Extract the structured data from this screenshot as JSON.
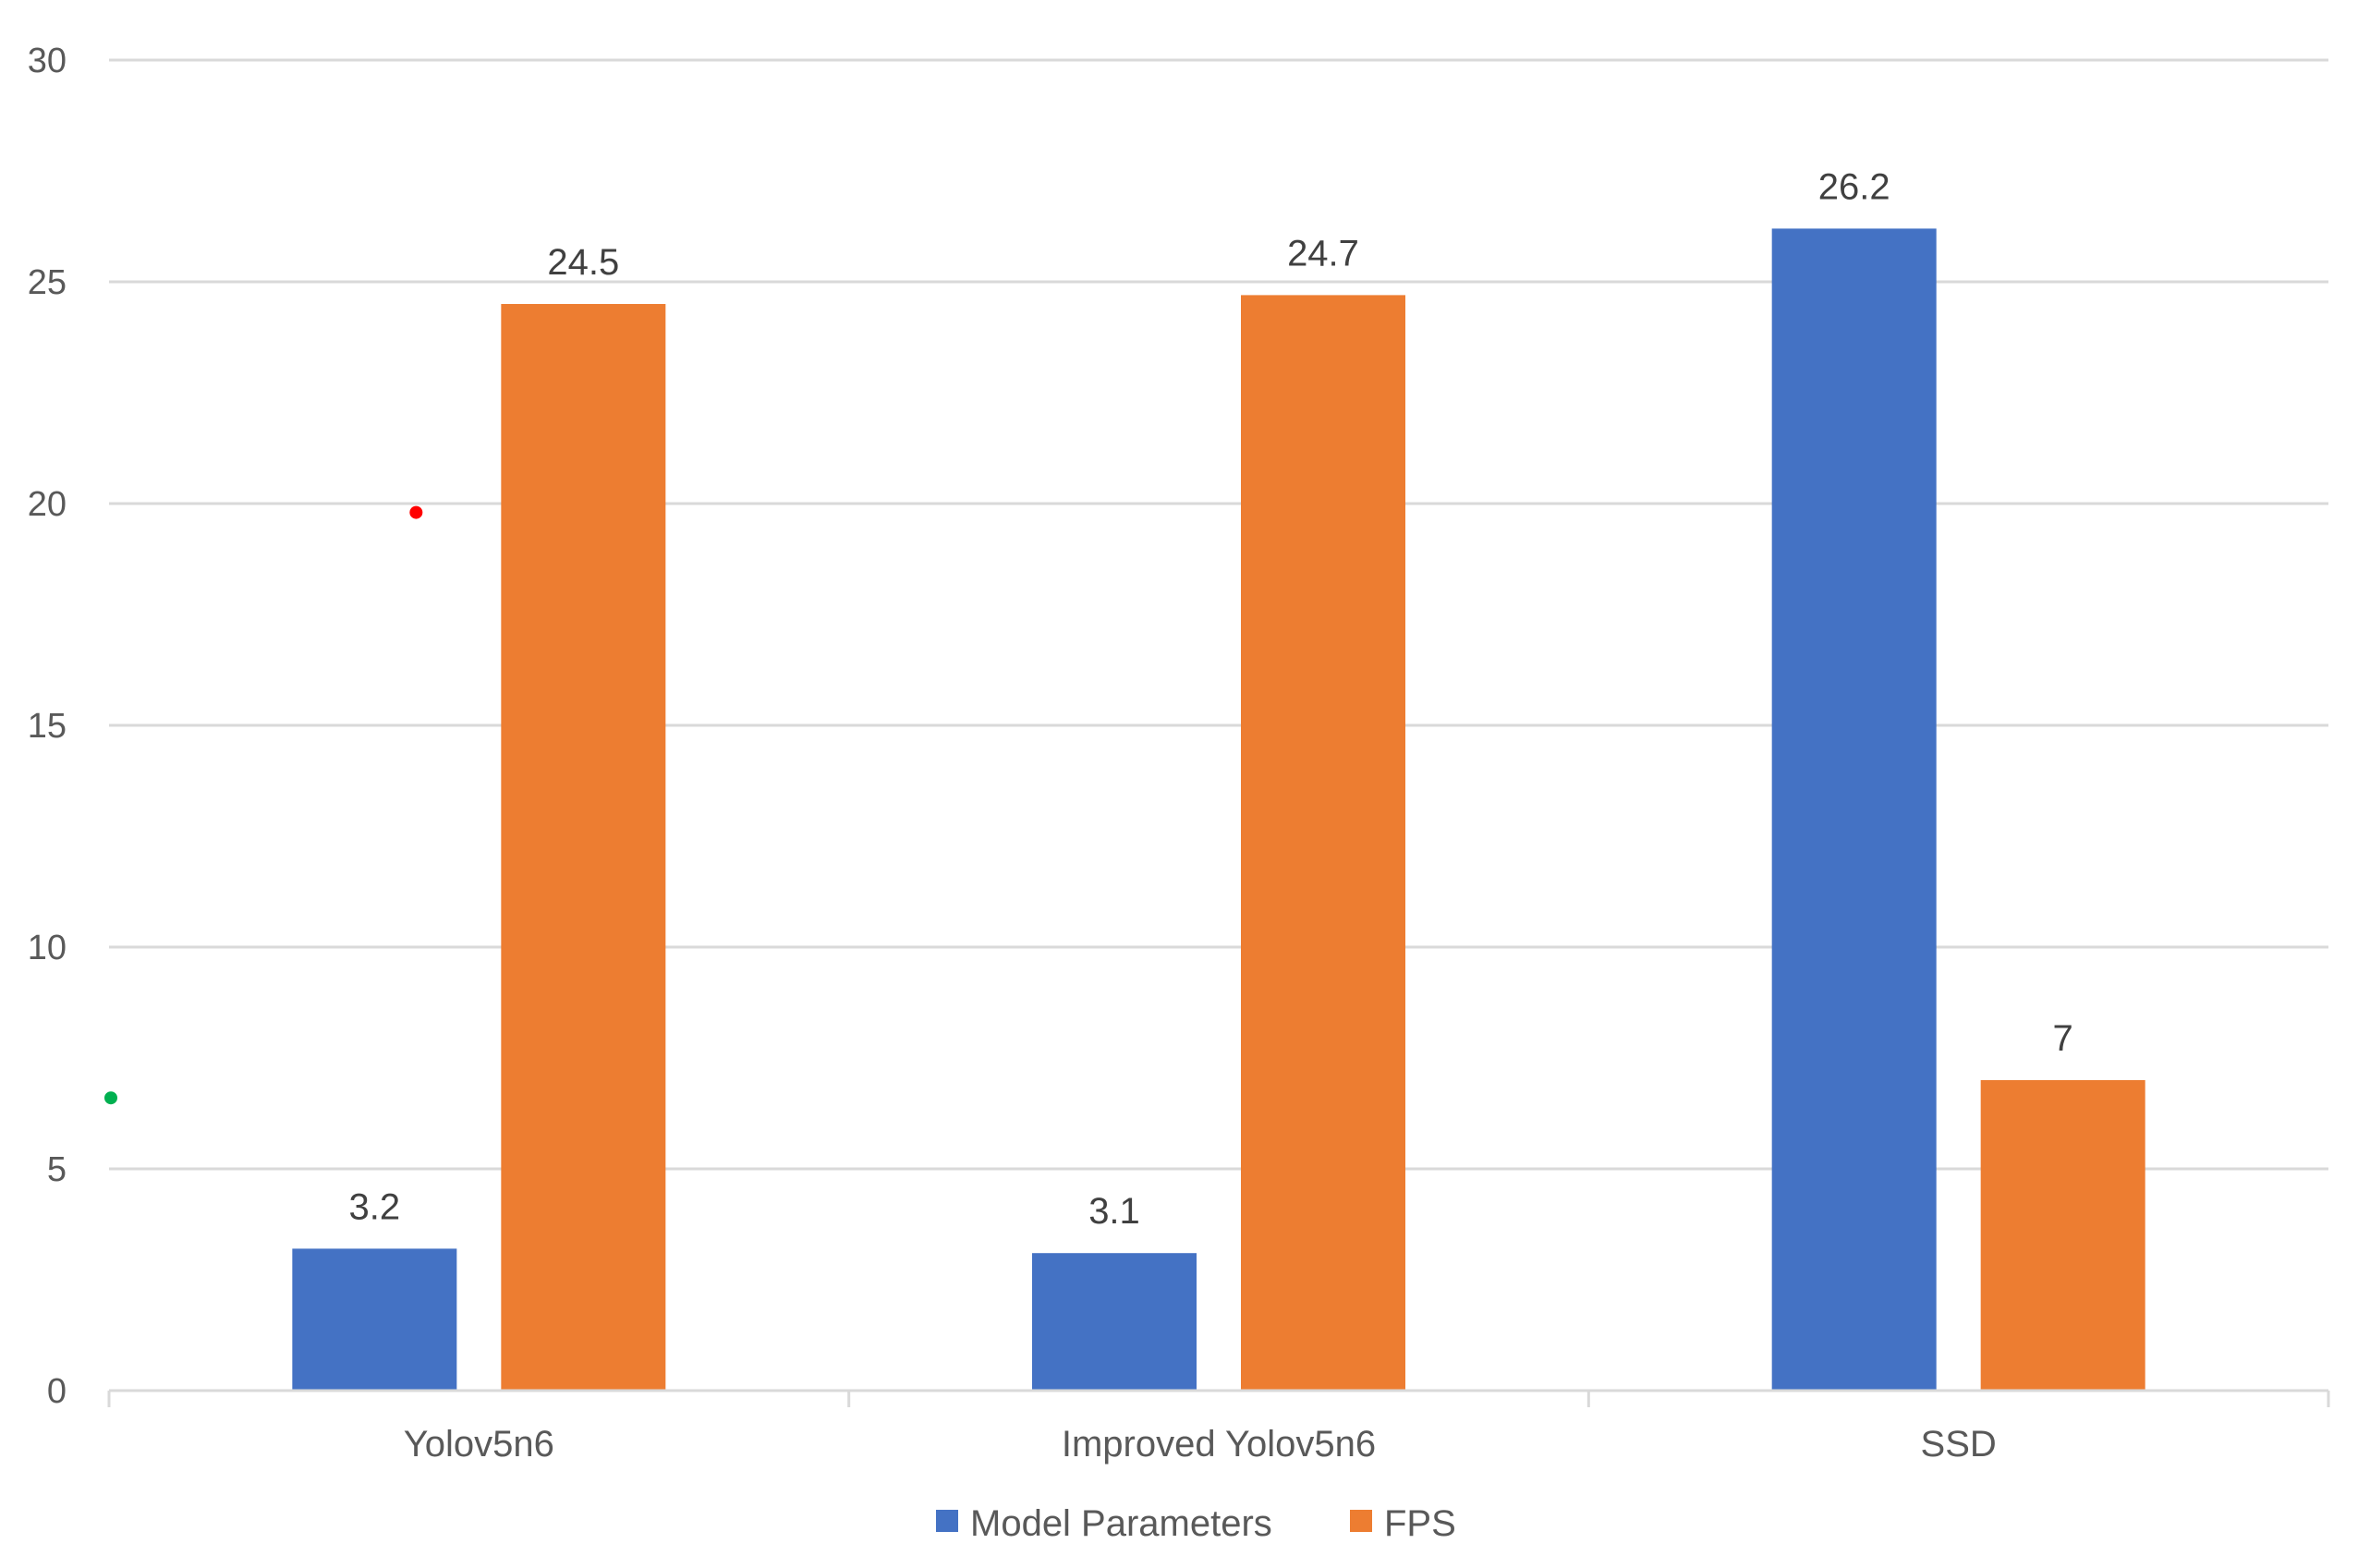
{
  "chart_data": {
    "type": "bar",
    "categories": [
      "Yolov5n6",
      "Improved Yolov5n6",
      "SSD"
    ],
    "series": [
      {
        "name": "Model Parameters",
        "values": [
          3.2,
          3.1,
          26.2
        ],
        "color": "#4472C4"
      },
      {
        "name": "FPS",
        "values": [
          24.5,
          24.7,
          7
        ],
        "color": "#ED7D31"
      }
    ],
    "data_labels": [
      [
        "3.2",
        "3.1",
        "26.2"
      ],
      [
        "24.5",
        "24.7",
        "7"
      ]
    ],
    "yticks": [
      "0",
      "5",
      "10",
      "15",
      "20",
      "25",
      "30"
    ],
    "ylim": [
      0,
      30
    ],
    "grid": true,
    "legend_position": "bottom-center",
    "markers": [
      {
        "x": "Yolov5n6",
        "y": 19.8,
        "color": "#ff0000"
      },
      {
        "x": "axis",
        "y": 6.6,
        "color": "#00b050"
      }
    ]
  }
}
